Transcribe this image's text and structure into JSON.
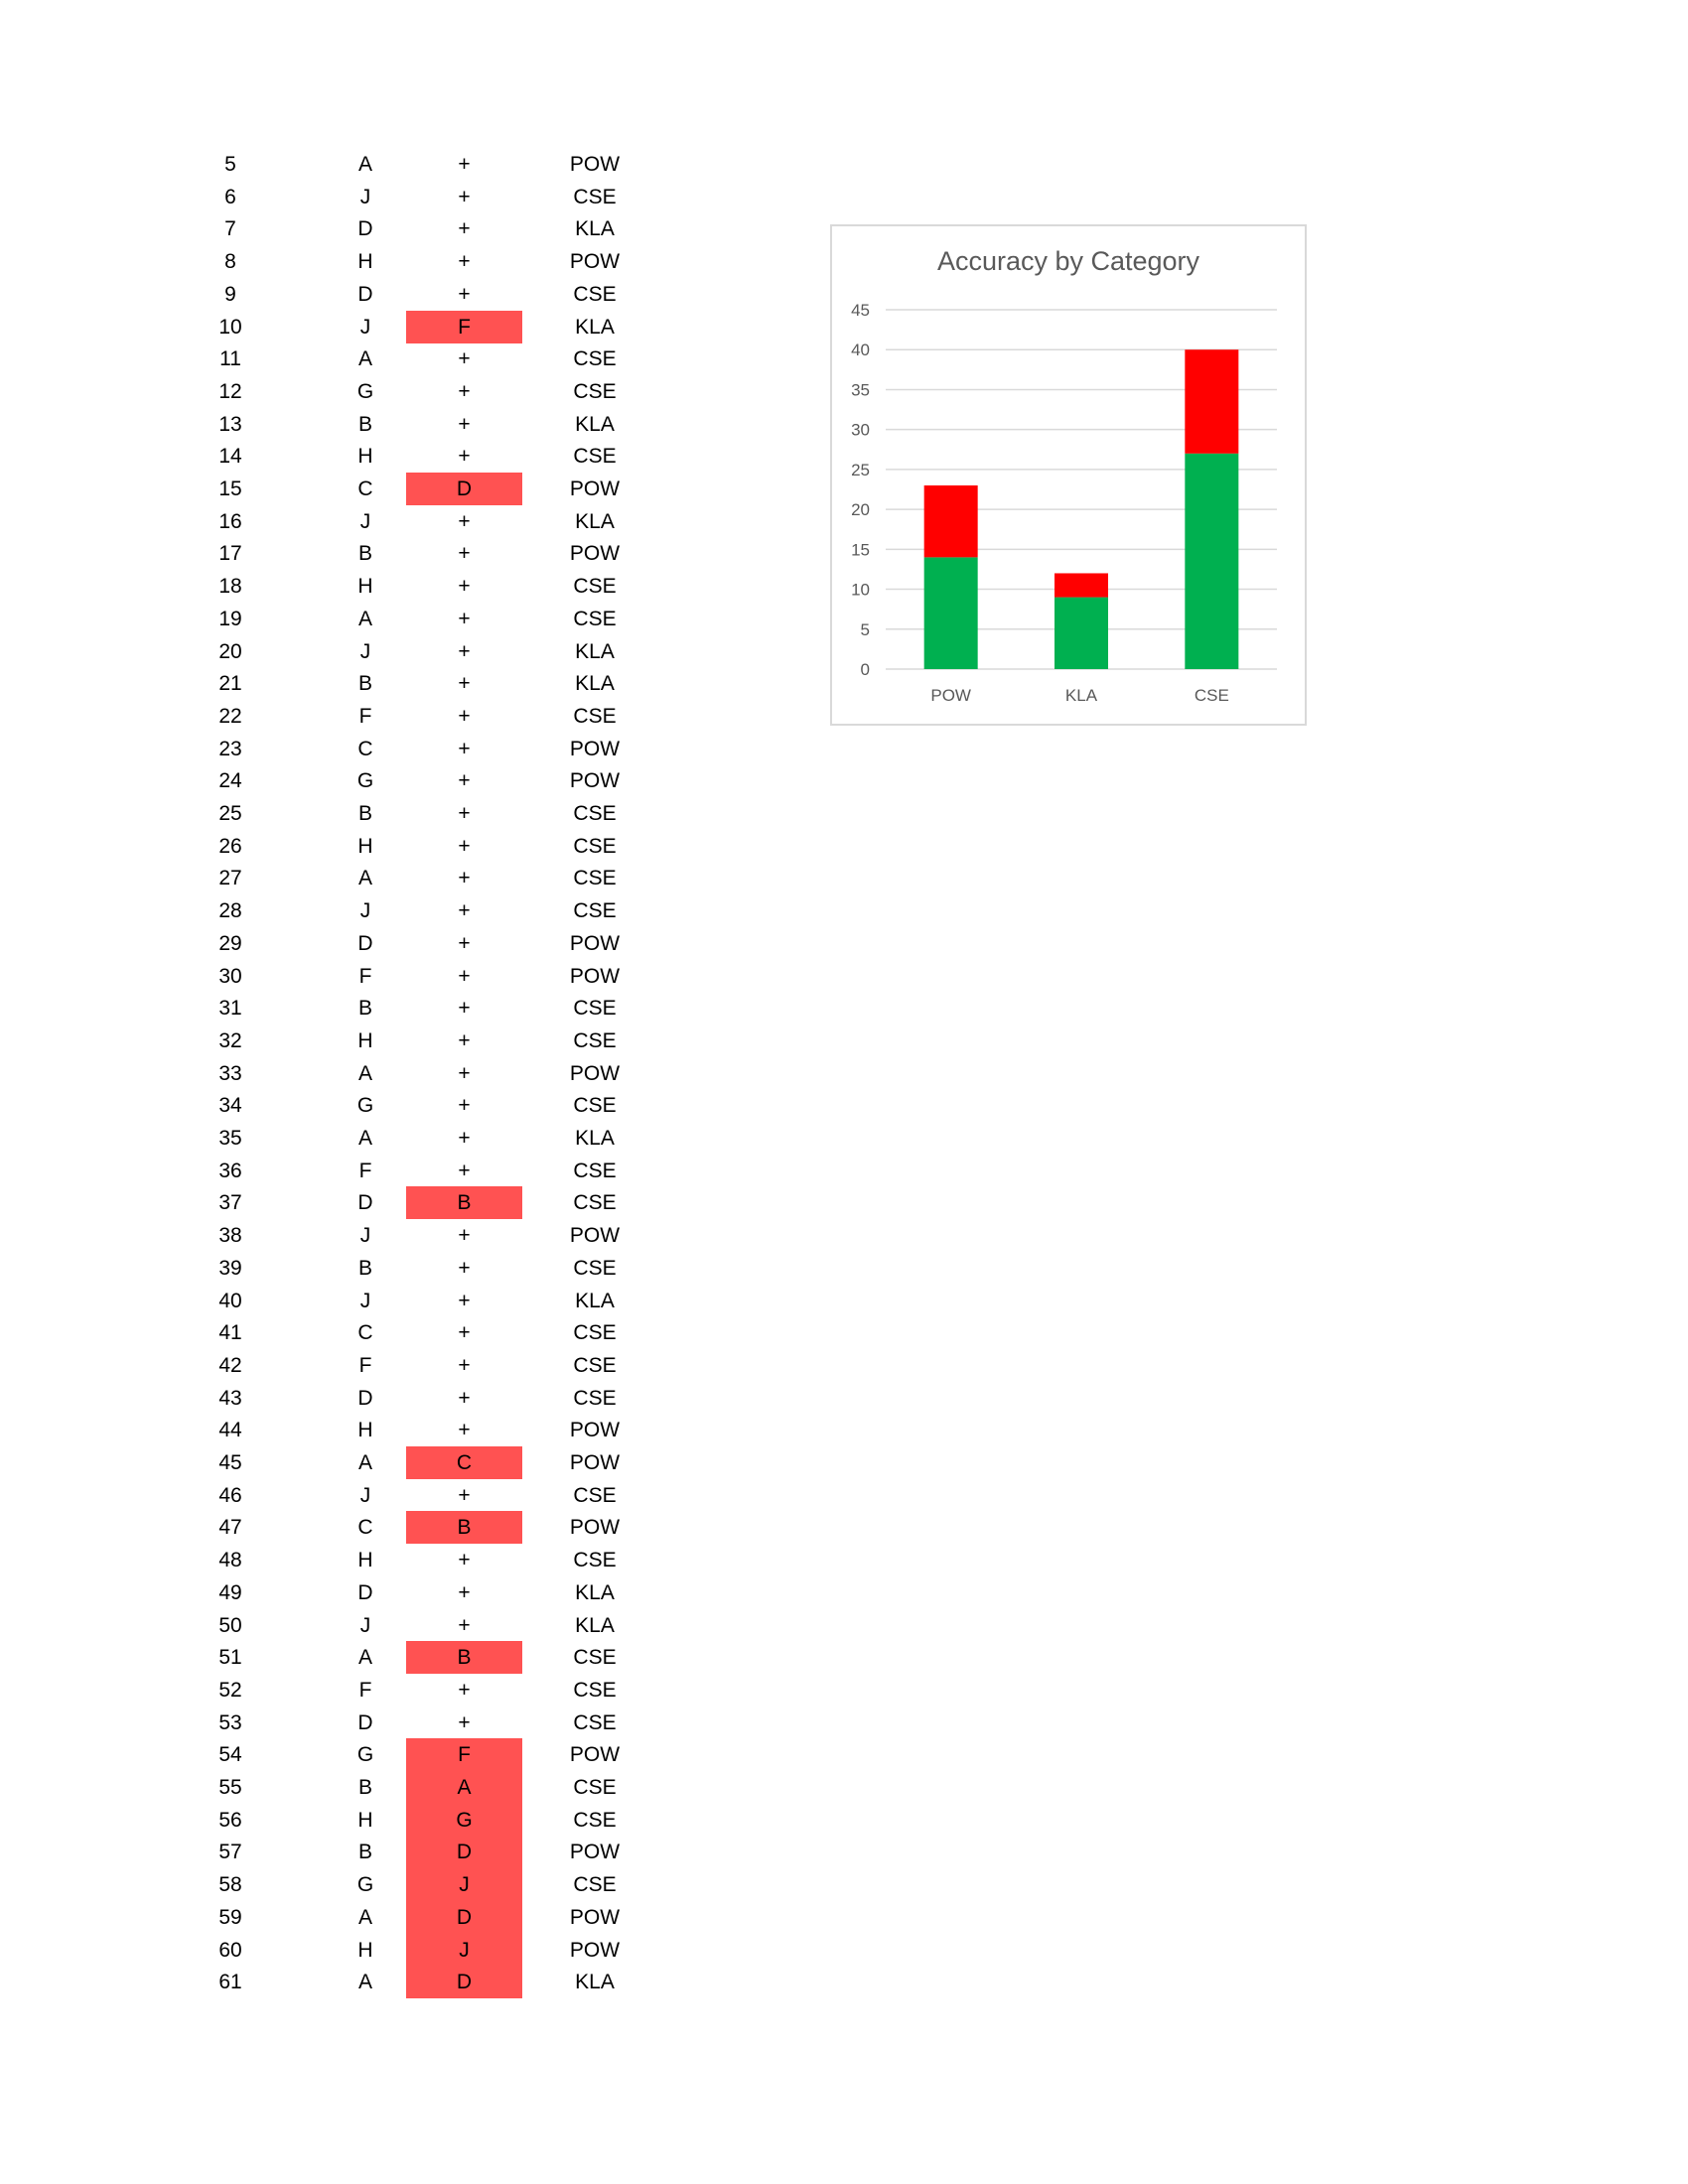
{
  "rows": [
    {
      "num": "5",
      "answer": "A",
      "result": "+",
      "category": "POW",
      "wrong": false
    },
    {
      "num": "6",
      "answer": "J",
      "result": "+",
      "category": "CSE",
      "wrong": false
    },
    {
      "num": "7",
      "answer": "D",
      "result": "+",
      "category": "KLA",
      "wrong": false
    },
    {
      "num": "8",
      "answer": "H",
      "result": "+",
      "category": "POW",
      "wrong": false
    },
    {
      "num": "9",
      "answer": "D",
      "result": "+",
      "category": "CSE",
      "wrong": false
    },
    {
      "num": "10",
      "answer": "J",
      "result": "F",
      "category": "KLA",
      "wrong": true
    },
    {
      "num": "11",
      "answer": "A",
      "result": "+",
      "category": "CSE",
      "wrong": false
    },
    {
      "num": "12",
      "answer": "G",
      "result": "+",
      "category": "CSE",
      "wrong": false
    },
    {
      "num": "13",
      "answer": "B",
      "result": "+",
      "category": "KLA",
      "wrong": false
    },
    {
      "num": "14",
      "answer": "H",
      "result": "+",
      "category": "CSE",
      "wrong": false
    },
    {
      "num": "15",
      "answer": "C",
      "result": "D",
      "category": "POW",
      "wrong": true
    },
    {
      "num": "16",
      "answer": "J",
      "result": "+",
      "category": "KLA",
      "wrong": false
    },
    {
      "num": "17",
      "answer": "B",
      "result": "+",
      "category": "POW",
      "wrong": false
    },
    {
      "num": "18",
      "answer": "H",
      "result": "+",
      "category": "CSE",
      "wrong": false
    },
    {
      "num": "19",
      "answer": "A",
      "result": "+",
      "category": "CSE",
      "wrong": false
    },
    {
      "num": "20",
      "answer": "J",
      "result": "+",
      "category": "KLA",
      "wrong": false
    },
    {
      "num": "21",
      "answer": "B",
      "result": "+",
      "category": "KLA",
      "wrong": false
    },
    {
      "num": "22",
      "answer": "F",
      "result": "+",
      "category": "CSE",
      "wrong": false
    },
    {
      "num": "23",
      "answer": "C",
      "result": "+",
      "category": "POW",
      "wrong": false
    },
    {
      "num": "24",
      "answer": "G",
      "result": "+",
      "category": "POW",
      "wrong": false
    },
    {
      "num": "25",
      "answer": "B",
      "result": "+",
      "category": "CSE",
      "wrong": false
    },
    {
      "num": "26",
      "answer": "H",
      "result": "+",
      "category": "CSE",
      "wrong": false
    },
    {
      "num": "27",
      "answer": "A",
      "result": "+",
      "category": "CSE",
      "wrong": false
    },
    {
      "num": "28",
      "answer": "J",
      "result": "+",
      "category": "CSE",
      "wrong": false
    },
    {
      "num": "29",
      "answer": "D",
      "result": "+",
      "category": "POW",
      "wrong": false
    },
    {
      "num": "30",
      "answer": "F",
      "result": "+",
      "category": "POW",
      "wrong": false
    },
    {
      "num": "31",
      "answer": "B",
      "result": "+",
      "category": "CSE",
      "wrong": false
    },
    {
      "num": "32",
      "answer": "H",
      "result": "+",
      "category": "CSE",
      "wrong": false
    },
    {
      "num": "33",
      "answer": "A",
      "result": "+",
      "category": "POW",
      "wrong": false
    },
    {
      "num": "34",
      "answer": "G",
      "result": "+",
      "category": "CSE",
      "wrong": false
    },
    {
      "num": "35",
      "answer": "A",
      "result": "+",
      "category": "KLA",
      "wrong": false
    },
    {
      "num": "36",
      "answer": "F",
      "result": "+",
      "category": "CSE",
      "wrong": false
    },
    {
      "num": "37",
      "answer": "D",
      "result": "B",
      "category": "CSE",
      "wrong": true
    },
    {
      "num": "38",
      "answer": "J",
      "result": "+",
      "category": "POW",
      "wrong": false
    },
    {
      "num": "39",
      "answer": "B",
      "result": "+",
      "category": "CSE",
      "wrong": false
    },
    {
      "num": "40",
      "answer": "J",
      "result": "+",
      "category": "KLA",
      "wrong": false
    },
    {
      "num": "41",
      "answer": "C",
      "result": "+",
      "category": "CSE",
      "wrong": false
    },
    {
      "num": "42",
      "answer": "F",
      "result": "+",
      "category": "CSE",
      "wrong": false
    },
    {
      "num": "43",
      "answer": "D",
      "result": "+",
      "category": "CSE",
      "wrong": false
    },
    {
      "num": "44",
      "answer": "H",
      "result": "+",
      "category": "POW",
      "wrong": false
    },
    {
      "num": "45",
      "answer": "A",
      "result": "C",
      "category": "POW",
      "wrong": true
    },
    {
      "num": "46",
      "answer": "J",
      "result": "+",
      "category": "CSE",
      "wrong": false
    },
    {
      "num": "47",
      "answer": "C",
      "result": "B",
      "category": "POW",
      "wrong": true
    },
    {
      "num": "48",
      "answer": "H",
      "result": "+",
      "category": "CSE",
      "wrong": false
    },
    {
      "num": "49",
      "answer": "D",
      "result": "+",
      "category": "KLA",
      "wrong": false
    },
    {
      "num": "50",
      "answer": "J",
      "result": "+",
      "category": "KLA",
      "wrong": false
    },
    {
      "num": "51",
      "answer": "A",
      "result": "B",
      "category": "CSE",
      "wrong": true
    },
    {
      "num": "52",
      "answer": "F",
      "result": "+",
      "category": "CSE",
      "wrong": false
    },
    {
      "num": "53",
      "answer": "D",
      "result": "+",
      "category": "CSE",
      "wrong": false
    },
    {
      "num": "54",
      "answer": "G",
      "result": "F",
      "category": "POW",
      "wrong": true
    },
    {
      "num": "55",
      "answer": "B",
      "result": "A",
      "category": "CSE",
      "wrong": true
    },
    {
      "num": "56",
      "answer": "H",
      "result": "G",
      "category": "CSE",
      "wrong": true
    },
    {
      "num": "57",
      "answer": "B",
      "result": "D",
      "category": "POW",
      "wrong": true
    },
    {
      "num": "58",
      "answer": "G",
      "result": "J",
      "category": "CSE",
      "wrong": true
    },
    {
      "num": "59",
      "answer": "A",
      "result": "D",
      "category": "POW",
      "wrong": true
    },
    {
      "num": "60",
      "answer": "H",
      "result": "J",
      "category": "POW",
      "wrong": true
    },
    {
      "num": "61",
      "answer": "A",
      "result": "D",
      "category": "KLA",
      "wrong": true
    }
  ],
  "colors": {
    "wrong_highlight": "#ff5252",
    "correct_series": "#00b050",
    "incorrect_series": "#ff0000",
    "gridline": "#d9d9d9",
    "axis_text": "#595959"
  },
  "chart_data": {
    "type": "bar",
    "stacked": true,
    "title": "Accuracy by Category",
    "categories": [
      "POW",
      "KLA",
      "CSE"
    ],
    "series": [
      {
        "values": [
          14,
          9,
          27
        ],
        "color": "#00b050"
      },
      {
        "values": [
          9,
          3,
          13
        ],
        "color": "#ff0000"
      }
    ],
    "ylim": [
      0,
      45
    ],
    "yticks": [
      "0",
      "5",
      "10",
      "15",
      "20",
      "25",
      "30",
      "35",
      "40",
      "45"
    ],
    "grid": true,
    "legend": "none"
  }
}
